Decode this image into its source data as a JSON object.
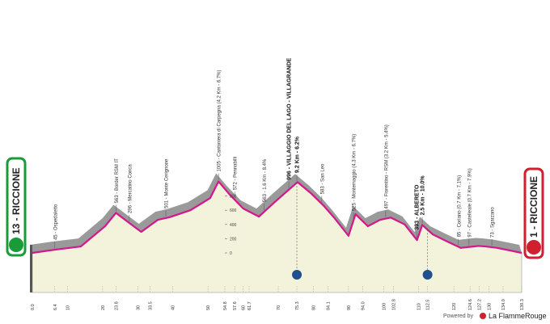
{
  "chart_data": {
    "type": "area",
    "start_label": "13 - RICCIONE",
    "finish_label": "1 - RICCIONE",
    "x": [
      0,
      6.4,
      13.8,
      20.7,
      23.8,
      27.6,
      31,
      35.7,
      39,
      45,
      50.6,
      53,
      56,
      60,
      64.5,
      69,
      75.5,
      79.5,
      83,
      86,
      90,
      92,
      95.5,
      99,
      102,
      106,
      109.5,
      111,
      114,
      118.5,
      122,
      124.6,
      127,
      129,
      132,
      139.3
    ],
    "values": [
      0,
      45,
      90,
      375,
      563,
      420,
      296,
      465,
      501,
      600,
      770,
      1005,
      830,
      625,
      510,
      715,
      996,
      830,
      660,
      490,
      240,
      545,
      375,
      465,
      497,
      400,
      180,
      393,
      260,
      150,
      70,
      85,
      97,
      90,
      73,
      0
    ],
    "color": "#d6168b",
    "fill": "#f3f3dc",
    "shadow": "#9a9a9a",
    "xlim": [
      0,
      139.3
    ],
    "ylim": [
      0,
      1300
    ],
    "yticks": [
      0,
      200,
      400,
      600,
      800
    ],
    "xticks": [
      {
        "value": 0,
        "label": "0.0"
      },
      6.4,
      10,
      20,
      23.8,
      30,
      33.5,
      40,
      50,
      54.8,
      57.6,
      60,
      61.7,
      70,
      75.3,
      80,
      84.1,
      90,
      {
        "value": 94,
        "label": "94.0"
      },
      100,
      102.8,
      110,
      112.5,
      120,
      124.6,
      127.2,
      130,
      {
        "value": 134,
        "label": "134.0"
      },
      139.3
    ],
    "kom_markers": [
      75.3,
      112.5
    ],
    "annotations": [
      {
        "x": 6.4,
        "text": "45 - Ospedaletto"
      },
      {
        "x": 23.8,
        "text": "563 - Border RSM IT"
      },
      {
        "x": 27.6,
        "text": "296 - Mercatino Conca"
      },
      {
        "x": 38,
        "text": "501 - Monte Cerignone"
      },
      {
        "x": 53,
        "text": "1005 - Cantoniera di Carpegna (4.2 Km - 6.7%)"
      },
      {
        "x": 57.6,
        "text": "572 - Pennabilli"
      },
      {
        "x": 66,
        "text": "563 - 1.6 Km - 8.4%"
      },
      {
        "x": 73,
        "text": "996 - VILLAGGIO DEL LAGO - VILLAGRANDE",
        "bold": true
      },
      {
        "x": 75.3,
        "text": "9.2 Km - 6.2%",
        "bold": true
      },
      {
        "x": 82.4,
        "text": "583 - San Leo"
      },
      {
        "x": 91.4,
        "text": "525 - Montemaggio (4.3 Km - 6.7%)"
      },
      {
        "x": 100.6,
        "text": "497 - Fiorentino - RSM (3.2 Km - 5.4%)"
      },
      {
        "x": 109.4,
        "text": "393 - ALBERETO",
        "bold": true
      },
      {
        "x": 111,
        "text": "2.5 Km - 10.0%",
        "bold": true
      },
      {
        "x": 121.3,
        "text": "85 - Coriano (0.7 Km - 7.1%)"
      },
      {
        "x": 124.3,
        "text": "97 - Castelleale (0.7 Km - 7.9%)"
      },
      {
        "x": 130.8,
        "text": "73 - Sgarzano"
      }
    ]
  },
  "footer": {
    "powered": "Powered by",
    "brand": "La FlammeRouge"
  }
}
